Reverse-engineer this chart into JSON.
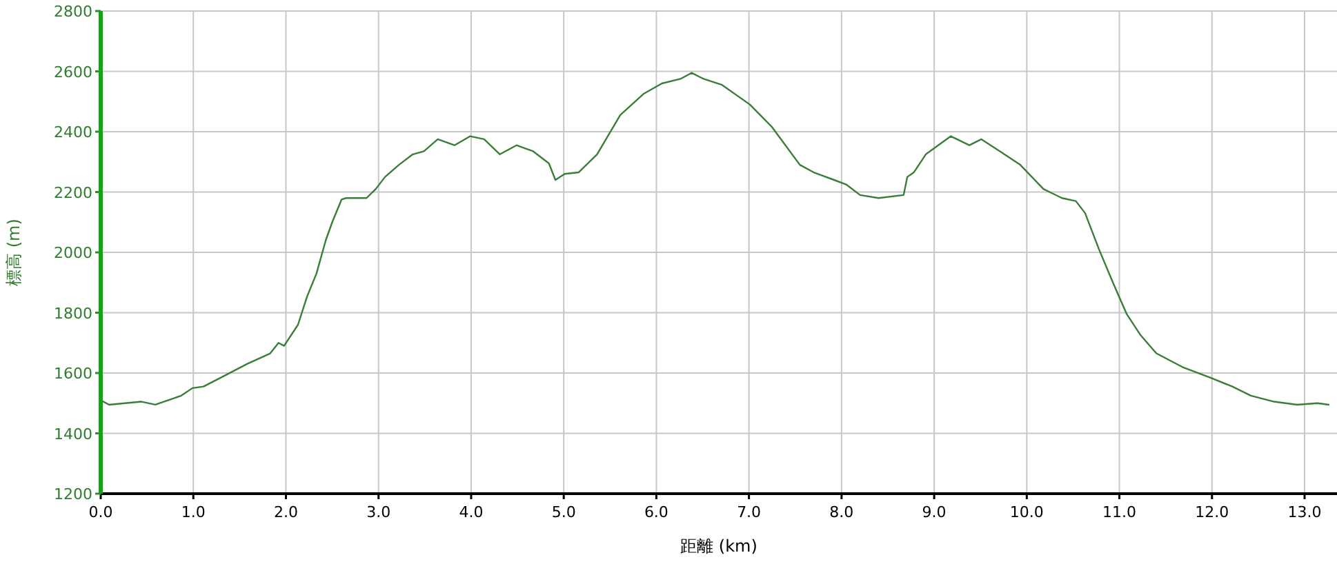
{
  "chart_data": {
    "type": "line",
    "xlabel": "距離 (km)",
    "ylabel": "標高 (m)",
    "xlim": [
      0,
      13.35
    ],
    "ylim": [
      1200,
      2800
    ],
    "xticks": [
      {
        "value": 0,
        "label": "0.0"
      },
      {
        "value": 1,
        "label": "1.0"
      },
      {
        "value": 2,
        "label": "2.0"
      },
      {
        "value": 3,
        "label": "3.0"
      },
      {
        "value": 4,
        "label": "4.0"
      },
      {
        "value": 5,
        "label": "5.0"
      },
      {
        "value": 6,
        "label": "6.0"
      },
      {
        "value": 7,
        "label": "7.0"
      },
      {
        "value": 8,
        "label": "8.0"
      },
      {
        "value": 9,
        "label": "9.0"
      },
      {
        "value": 10,
        "label": "10.0"
      },
      {
        "value": 11,
        "label": "11.0"
      },
      {
        "value": 12,
        "label": "12.0"
      },
      {
        "value": 13,
        "label": "13.0"
      }
    ],
    "yticks": [
      1200,
      1400,
      1600,
      1800,
      2000,
      2200,
      2400,
      2600,
      2800
    ],
    "grid": true,
    "series": [
      {
        "color": "#3a7d3a",
        "x": [
          0,
          0.09,
          0.44,
          0.59,
          0.87,
          0.99,
          1.11,
          1.33,
          1.58,
          1.83,
          1.92,
          1.98,
          2.13,
          2.23,
          2.33,
          2.43,
          2.5,
          2.6,
          2.65,
          2.77,
          2.87,
          2.97,
          3.07,
          3.22,
          3.37,
          3.49,
          3.64,
          3.82,
          3.99,
          4.14,
          4.31,
          4.49,
          4.67,
          4.84,
          4.91,
          5.01,
          5.16,
          5.36,
          5.61,
          5.86,
          6.06,
          6.26,
          6.38,
          6.51,
          6.71,
          7.01,
          7.25,
          7.55,
          7.7,
          7.92,
          8.05,
          8.2,
          8.4,
          8.67,
          8.71,
          8.78,
          8.91,
          9.18,
          9.38,
          9.51,
          9.71,
          9.93,
          10.18,
          10.38,
          10.53,
          10.63,
          10.78,
          10.93,
          11.08,
          11.23,
          11.4,
          11.68,
          11.98,
          12.22,
          12.42,
          12.67,
          12.92,
          13.14,
          13.26
        ],
        "values": [
          1510,
          1495,
          1505,
          1495,
          1525,
          1550,
          1555,
          1590,
          1630,
          1665,
          1700,
          1690,
          1760,
          1855,
          1930,
          2040,
          2100,
          2175,
          2180,
          2180,
          2180,
          2210,
          2250,
          2290,
          2325,
          2335,
          2375,
          2355,
          2385,
          2375,
          2325,
          2355,
          2335,
          2295,
          2240,
          2260,
          2265,
          2325,
          2455,
          2525,
          2560,
          2575,
          2595,
          2575,
          2555,
          2490,
          2415,
          2290,
          2265,
          2240,
          2225,
          2190,
          2180,
          2190,
          2250,
          2265,
          2325,
          2385,
          2355,
          2375,
          2335,
          2290,
          2210,
          2180,
          2170,
          2130,
          2010,
          1900,
          1795,
          1725,
          1665,
          1620,
          1585,
          1555,
          1525,
          1505,
          1495,
          1500,
          1495
        ]
      }
    ]
  }
}
